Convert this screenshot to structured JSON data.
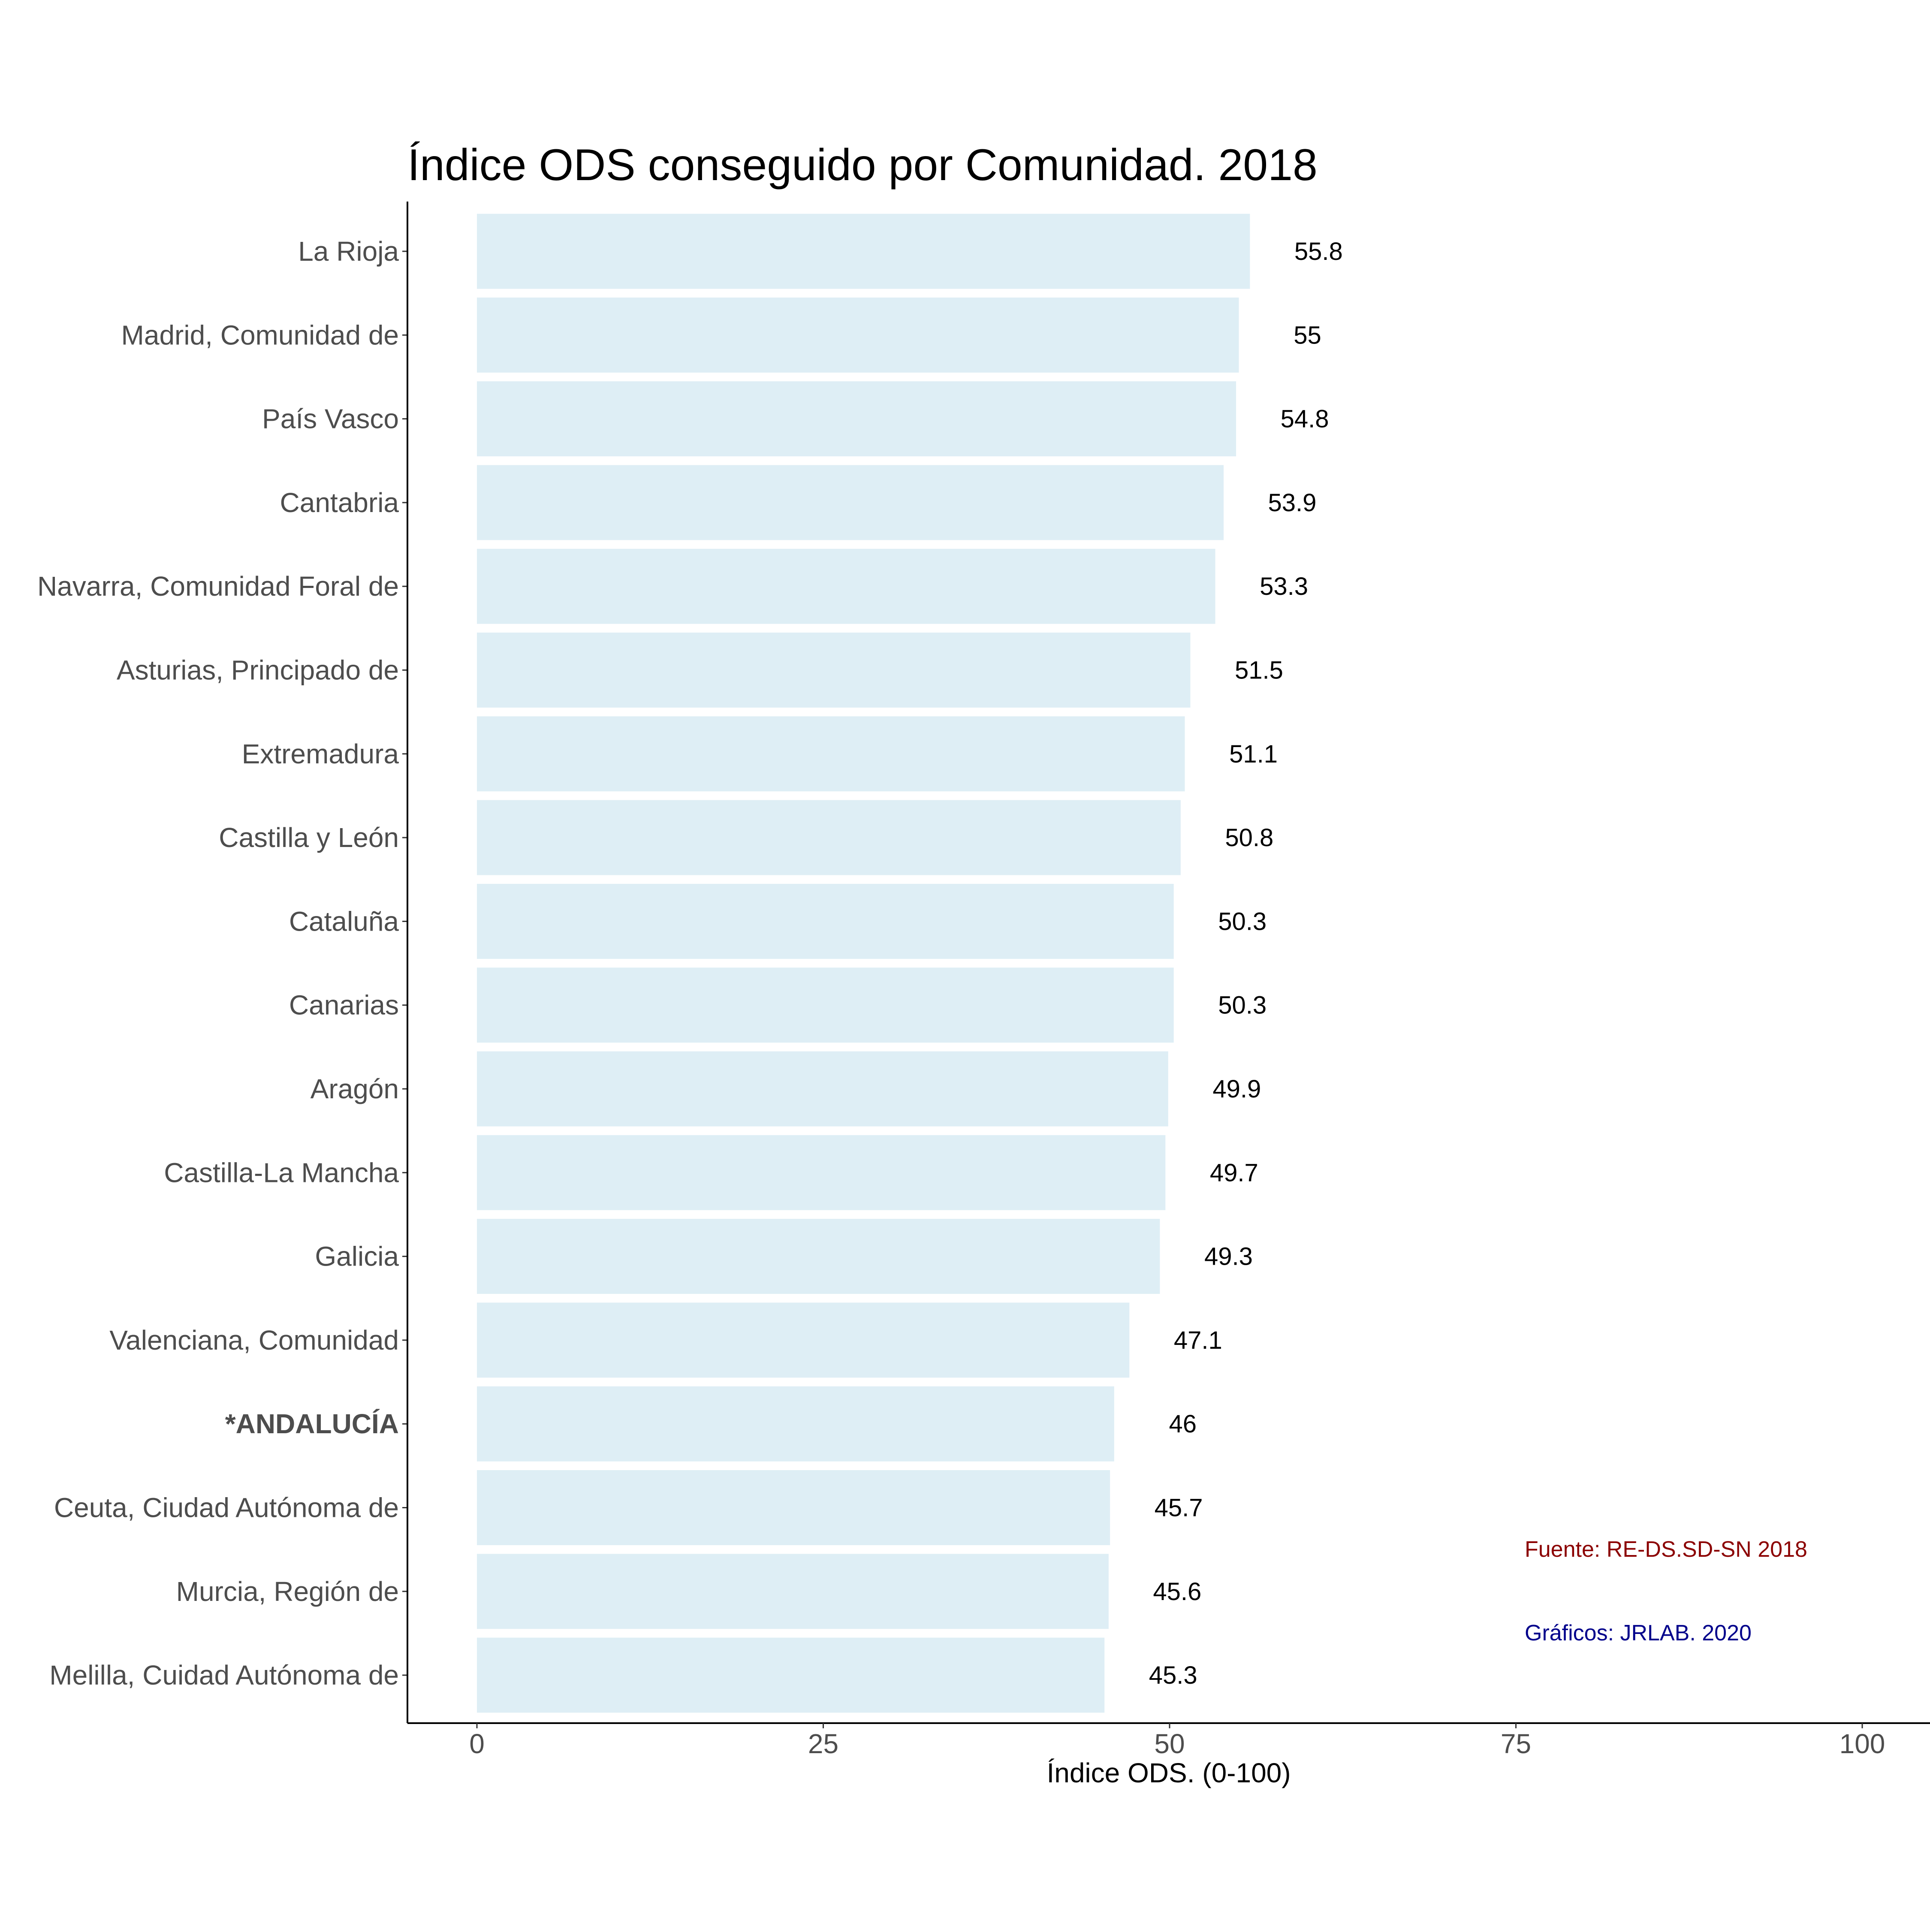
{
  "chart_data": {
    "type": "bar",
    "orientation": "horizontal",
    "title": "Índice ODS conseguido por Comunidad. 2018",
    "xlabel": "Índice ODS. (0-100)",
    "ylabel": "",
    "xlim": [
      0,
      100
    ],
    "xticks": [
      0,
      25,
      50,
      75,
      100
    ],
    "grid": false,
    "bar_color": "#deeef5",
    "categories": [
      "La Rioja",
      "Madrid, Comunidad de",
      "País Vasco",
      "Cantabria",
      "Navarra, Comunidad Foral de",
      "Asturias, Principado de",
      "Extremadura",
      "Castilla y León",
      "Cataluña",
      "Canarias",
      "Aragón",
      "Castilla-La Mancha",
      "Galicia",
      "Valenciana, Comunidad",
      "*ANDALUCÍA",
      "Ceuta, Ciudad Autónoma de",
      "Murcia, Región de",
      "Melilla, Cuidad Autónoma de"
    ],
    "values": [
      55.8,
      55,
      54.8,
      53.9,
      53.3,
      51.5,
      51.1,
      50.8,
      50.3,
      50.3,
      49.9,
      49.7,
      49.3,
      47.1,
      46,
      45.7,
      45.6,
      45.3
    ],
    "value_labels": [
      "55.8",
      "55",
      "54.8",
      "53.9",
      "53.3",
      "51.5",
      "51.1",
      "50.8",
      "50.3",
      "50.3",
      "49.9",
      "49.7",
      "49.3",
      "47.1",
      "46",
      "45.7",
      "45.6",
      "45.3"
    ],
    "highlighted_category": "*ANDALUCÍA",
    "annotations": [
      {
        "text": "Fuente: RE-DS.SD-SN 2018",
        "color": "#8b0000"
      },
      {
        "text": "Gráficos: JRLAB. 2020",
        "color": "#00008b"
      }
    ]
  }
}
